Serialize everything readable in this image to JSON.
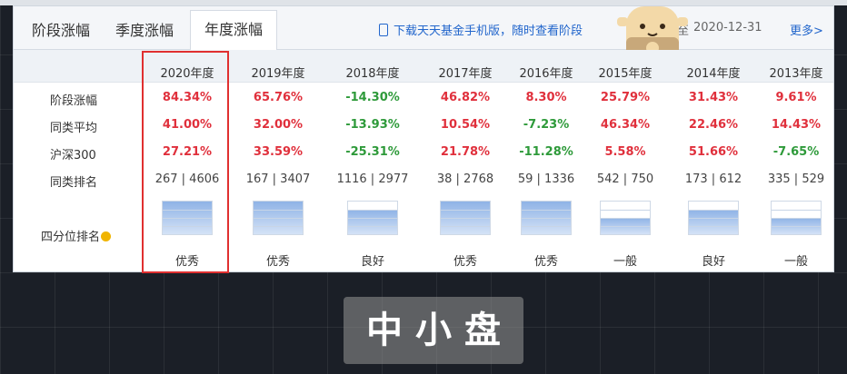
{
  "tabs": [
    {
      "label": "阶段涨幅",
      "active": false
    },
    {
      "label": "季度涨幅",
      "active": false
    },
    {
      "label": "年度涨幅",
      "active": true
    }
  ],
  "header": {
    "download_text": "下载天天基金手机版，随时查看阶段",
    "date_suffix": "至",
    "date": "2020-12-31",
    "more": "更多>"
  },
  "table": {
    "years": [
      "2020年度",
      "2019年度",
      "2018年度",
      "2017年度",
      "2016年度",
      "2015年度",
      "2014年度",
      "2013年度"
    ],
    "row_labels": {
      "stage": "阶段涨幅",
      "avg": "同类平均",
      "hs300": "沪深300",
      "rank": "同类排名",
      "quartile": "四分位排名"
    },
    "stage": [
      "84.34%",
      "65.76%",
      "-14.30%",
      "46.82%",
      "8.30%",
      "25.79%",
      "31.43%",
      "9.61%"
    ],
    "avg": [
      "41.00%",
      "32.00%",
      "-13.93%",
      "10.54%",
      "-7.23%",
      "46.34%",
      "22.46%",
      "14.43%"
    ],
    "hs300": [
      "27.21%",
      "33.59%",
      "-25.31%",
      "21.78%",
      "-11.28%",
      "5.58%",
      "51.66%",
      "-7.65%"
    ],
    "rank": [
      "267 | 4606",
      "167 | 3407",
      "1116 | 2977",
      "38 | 2768",
      "59 | 1336",
      "542 | 750",
      "173 | 612",
      "335 | 529"
    ],
    "quartile_level": [
      4,
      4,
      3,
      4,
      4,
      2,
      3,
      2
    ],
    "grades": [
      "优秀",
      "优秀",
      "良好",
      "优秀",
      "优秀",
      "一般",
      "良好",
      "一般"
    ]
  },
  "colors": {
    "positive": "#e0303c",
    "negative": "#2e9a3a",
    "highlight": "#e03030"
  },
  "caption": "中小盘"
}
